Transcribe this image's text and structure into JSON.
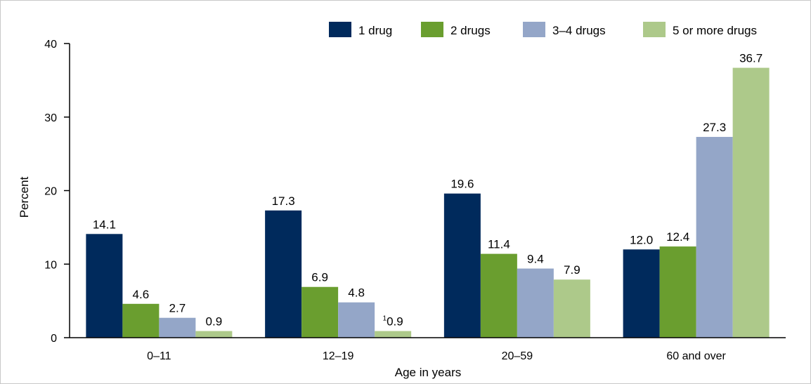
{
  "chart_data": {
    "type": "bar",
    "categories": [
      "0–11",
      "12–19",
      "20–59",
      "60 and over"
    ],
    "series": [
      {
        "name": "1 drug",
        "color": "#002a5c",
        "values": [
          14.1,
          17.3,
          19.6,
          12.0
        ],
        "labels": [
          "14.1",
          "17.3",
          "19.6",
          "12.0"
        ],
        "notes": [
          "",
          "",
          "",
          ""
        ]
      },
      {
        "name": "2 drugs",
        "color": "#6a9e2f",
        "values": [
          4.6,
          6.9,
          11.4,
          12.4
        ],
        "labels": [
          "4.6",
          "6.9",
          "11.4",
          "12.4"
        ],
        "notes": [
          "",
          "",
          "",
          ""
        ]
      },
      {
        "name": "3–4 drugs",
        "color": "#94a6c8",
        "values": [
          2.7,
          4.8,
          9.4,
          27.3
        ],
        "labels": [
          "2.7",
          "4.8",
          "9.4",
          "27.3"
        ],
        "notes": [
          "",
          "",
          "",
          ""
        ]
      },
      {
        "name": "5 or more drugs",
        "color": "#adc98a",
        "values": [
          0.9,
          0.9,
          7.9,
          36.7
        ],
        "labels": [
          "0.9",
          "0.9",
          "7.9",
          "36.7"
        ],
        "notes": [
          "",
          "1",
          "",
          ""
        ]
      }
    ],
    "xlabel": "Age in years",
    "ylabel": "Percent",
    "ylim": [
      0,
      40
    ],
    "yticks": [
      "0",
      "10",
      "20",
      "30",
      "40"
    ],
    "legend_position": "top-right",
    "grid": false
  }
}
